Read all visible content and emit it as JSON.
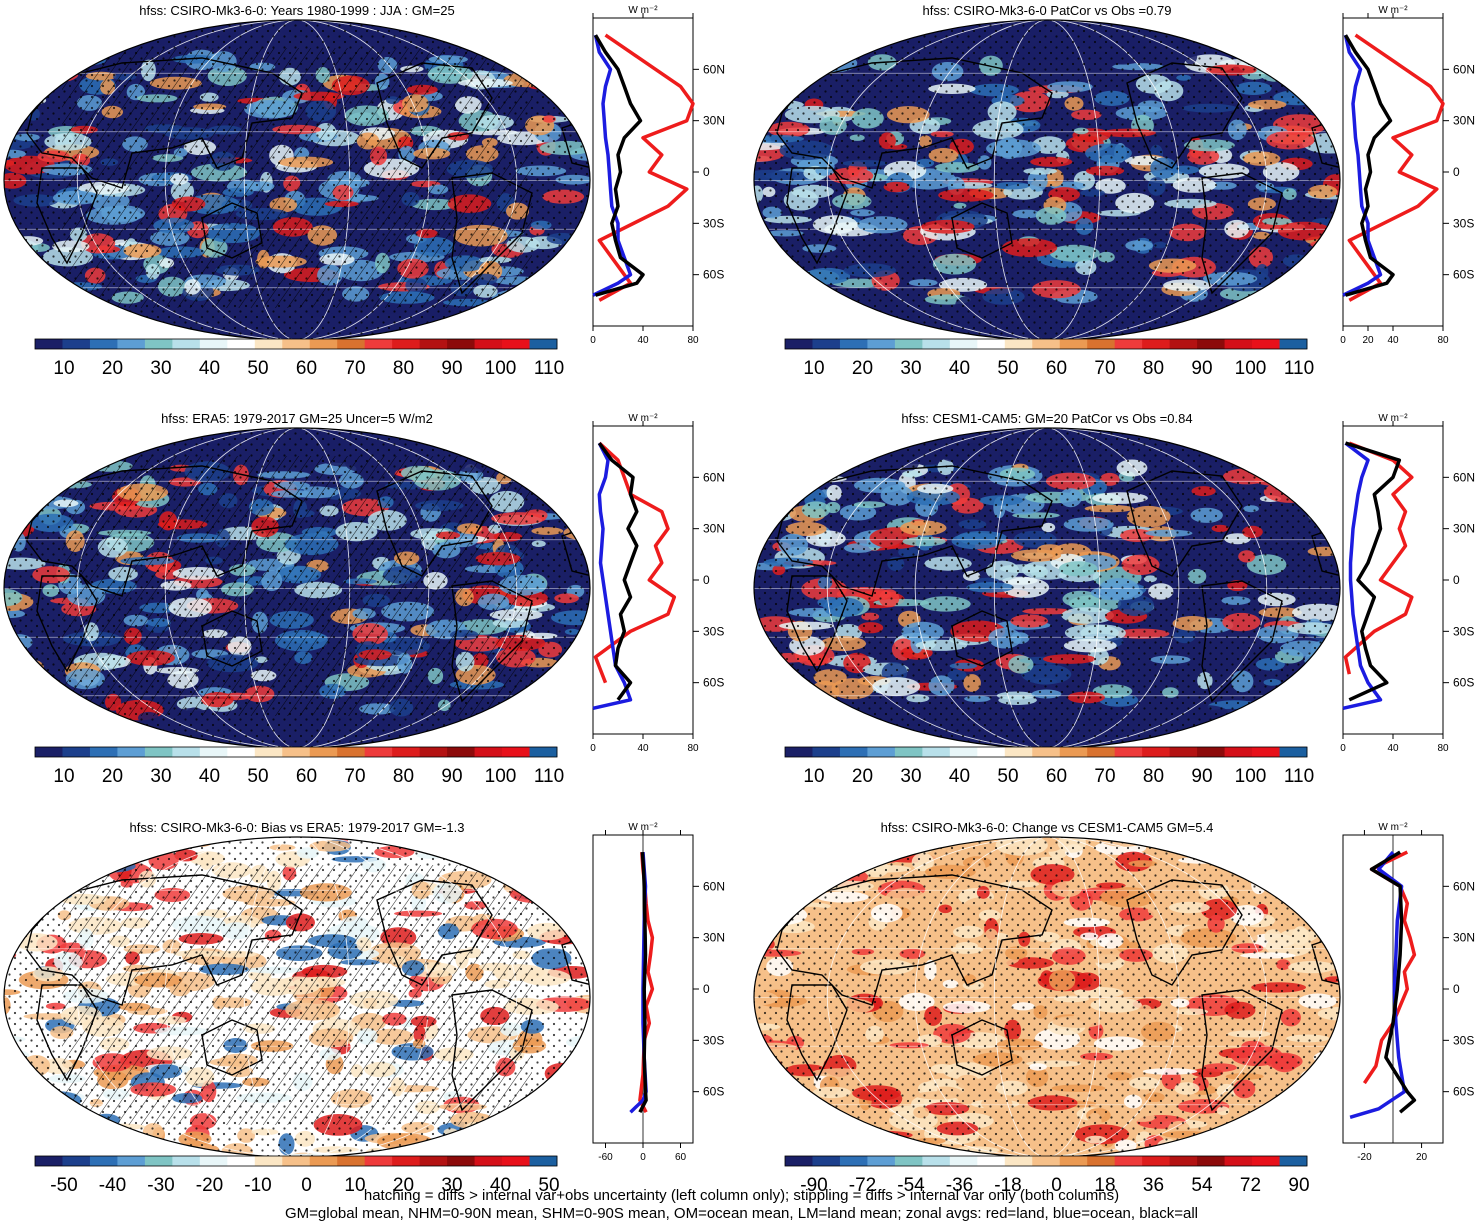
{
  "panels": [
    {
      "title": "hfss: CSIRO-Mk3-6-0: Years 1980-1999 : JJA : GM=25",
      "kind": "mean",
      "stipple": true,
      "hatch": true,
      "colorbar": {
        "ticks": [
          "10",
          "20",
          "30",
          "40",
          "50",
          "60",
          "70",
          "80",
          "90",
          "100",
          "110"
        ]
      },
      "profile": {
        "unit": "W m-2",
        "xticks": [
          "0",
          "40",
          "80"
        ],
        "xlim": [
          0,
          80
        ]
      }
    },
    {
      "title": "hfss: CSIRO-Mk3-6-0 PatCor vs Obs =0.79",
      "kind": "mean",
      "stipple": true,
      "hatch": false,
      "colorbar": {
        "ticks": [
          "10",
          "20",
          "30",
          "40",
          "50",
          "60",
          "70",
          "80",
          "90",
          "100",
          "110"
        ]
      },
      "profile": {
        "unit": "W m-2",
        "xticks": [
          "0",
          "20",
          "40",
          "80"
        ],
        "xlim": [
          0,
          80
        ]
      }
    },
    {
      "title": "hfss: ERA5: 1979-2017 GM=25 Uncer=5 W/m2",
      "kind": "mean",
      "stipple": true,
      "hatch": true,
      "colorbar": {
        "ticks": [
          "10",
          "20",
          "30",
          "40",
          "50",
          "60",
          "70",
          "80",
          "90",
          "100",
          "110"
        ]
      },
      "profile": {
        "unit": "W m-2",
        "xticks": [
          "0",
          "40",
          "80"
        ],
        "xlim": [
          0,
          80
        ]
      }
    },
    {
      "title": "hfss: CESM1-CAM5: GM=20 PatCor vs Obs =0.84",
      "kind": "mean",
      "stipple": true,
      "hatch": false,
      "colorbar": {
        "ticks": [
          "10",
          "20",
          "30",
          "40",
          "50",
          "60",
          "70",
          "80",
          "90",
          "100",
          "110"
        ]
      },
      "profile": {
        "unit": "W m-2",
        "xticks": [
          "0",
          "40",
          "80"
        ],
        "xlim": [
          0,
          80
        ]
      }
    },
    {
      "title": "hfss: CSIRO-Mk3-6-0: Bias vs ERA5: 1979-2017 GM=-1.3",
      "kind": "bias",
      "stipple": true,
      "hatch": true,
      "colorbar": {
        "ticks": [
          "-50",
          "-40",
          "-30",
          "-20",
          "-10",
          "0",
          "10",
          "20",
          "30",
          "40",
          "50"
        ]
      },
      "profile": {
        "unit": "W m-2",
        "xticks": [
          "-60",
          "0",
          "60"
        ],
        "xlim": [
          -80,
          80
        ]
      }
    },
    {
      "title": "hfss: CSIRO-Mk3-6-0: Change vs CESM1-CAM5 GM=5.4",
      "kind": "change",
      "stipple": true,
      "hatch": false,
      "colorbar": {
        "ticks": [
          "-90",
          "-72",
          "-54",
          "-36",
          "-18",
          "0",
          "18",
          "36",
          "54",
          "72",
          "90"
        ]
      },
      "profile": {
        "unit": "W m-2",
        "xticks": [
          "-20",
          "20"
        ],
        "xlim": [
          -35,
          35
        ]
      }
    }
  ],
  "lat_ticks": [
    "60N",
    "30N",
    "0",
    "30S",
    "60S"
  ],
  "palette": [
    "#1a1f66",
    "#1c3f8c",
    "#2d6fb5",
    "#5d9ed4",
    "#7fc4c4",
    "#b8e0ea",
    "#e8f6f8",
    "#ffffff",
    "#fbe6c4",
    "#f6c089",
    "#eb9a53",
    "#d9722f",
    "#ee3b3b",
    "#dd1c1c",
    "#b31212",
    "#8c0a0a",
    "#d40f18",
    "#e8101a",
    "#1b5fa0"
  ],
  "footer": {
    "line1": "hatching = diffs > internal var+obs uncertainty (left column only); stippling = diffs > internal var only (both columns)",
    "line2": "GM=global mean, NHM=0-90N mean, SHM=0-90S mean, OM=ocean mean, LM=land mean; zonal avgs: red=land, blue=ocean, black=all"
  },
  "chart_data": [
    {
      "type": "line",
      "title": "hfss: CSIRO-Mk3-6-0: Years 1980-1999 : JJA : GM=25",
      "xlabel": "W m-2",
      "xlim": [
        0,
        80
      ],
      "ylabel": "",
      "ylim": [
        -90,
        90
      ],
      "series": [
        {
          "name": "land",
          "color": "#ee1c1c",
          "y": [
            -75,
            -65,
            -40,
            -20,
            -10,
            0,
            10,
            20,
            30,
            40,
            50,
            60,
            70,
            80
          ],
          "values": [
            5,
            30,
            5,
            60,
            75,
            45,
            55,
            40,
            75,
            80,
            70,
            50,
            30,
            10
          ]
        },
        {
          "name": "ocean",
          "color": "#1c1ce0",
          "y": [
            -72,
            -65,
            -60,
            -50,
            -40,
            -30,
            -20,
            -10,
            0,
            10,
            20,
            30,
            40,
            50,
            60,
            70,
            80
          ],
          "values": [
            0,
            20,
            30,
            25,
            20,
            20,
            15,
            14,
            13,
            12,
            10,
            9,
            8,
            10,
            14,
            5,
            2
          ]
        },
        {
          "name": "all",
          "color": "#000000",
          "y": [
            -72,
            -65,
            -60,
            -50,
            -40,
            -30,
            -20,
            -10,
            0,
            10,
            20,
            30,
            40,
            50,
            60,
            70,
            80
          ],
          "values": [
            2,
            35,
            40,
            22,
            18,
            15,
            20,
            18,
            22,
            20,
            25,
            38,
            30,
            25,
            20,
            10,
            2
          ]
        }
      ]
    },
    {
      "type": "line",
      "title": "hfss: CSIRO-Mk3-6-0 PatCor vs Obs =0.79",
      "xlabel": "W m-2",
      "xlim": [
        0,
        80
      ],
      "ylabel": "",
      "ylim": [
        -90,
        90
      ],
      "series": [
        {
          "name": "land",
          "color": "#ee1c1c",
          "y": [
            -75,
            -65,
            -40,
            -20,
            -10,
            0,
            10,
            20,
            30,
            40,
            50,
            60,
            70,
            80
          ],
          "values": [
            5,
            30,
            5,
            60,
            75,
            45,
            55,
            40,
            75,
            80,
            70,
            50,
            30,
            10
          ]
        },
        {
          "name": "ocean",
          "color": "#1c1ce0",
          "y": [
            -72,
            -65,
            -60,
            -50,
            -40,
            -30,
            -20,
            -10,
            0,
            10,
            20,
            30,
            40,
            50,
            60,
            70,
            80
          ],
          "values": [
            0,
            20,
            30,
            25,
            20,
            20,
            15,
            14,
            13,
            12,
            10,
            9,
            8,
            10,
            14,
            5,
            2
          ]
        },
        {
          "name": "all",
          "color": "#000000",
          "y": [
            -72,
            -65,
            -60,
            -50,
            -40,
            -30,
            -20,
            -10,
            0,
            10,
            20,
            30,
            40,
            50,
            60,
            70,
            80
          ],
          "values": [
            2,
            35,
            40,
            22,
            18,
            15,
            20,
            18,
            22,
            20,
            25,
            38,
            30,
            25,
            20,
            10,
            2
          ]
        }
      ]
    },
    {
      "type": "line",
      "title": "hfss: ERA5: 1979-2017 GM=25 Uncer=5 W/m2",
      "xlabel": "W m-2",
      "xlim": [
        0,
        80
      ],
      "ylabel": "",
      "ylim": [
        -90,
        90
      ],
      "series": [
        {
          "name": "land",
          "color": "#ee1c1c",
          "y": [
            -60,
            -45,
            -30,
            -20,
            -10,
            0,
            10,
            20,
            30,
            40,
            50,
            60,
            70,
            80
          ],
          "values": [
            10,
            2,
            30,
            60,
            65,
            45,
            55,
            50,
            60,
            55,
            30,
            25,
            20,
            5
          ]
        },
        {
          "name": "ocean",
          "color": "#1c1ce0",
          "y": [
            -75,
            -70,
            -60,
            -50,
            -40,
            -30,
            -20,
            -10,
            0,
            10,
            20,
            30,
            40,
            50,
            60,
            70,
            80
          ],
          "values": [
            0,
            30,
            25,
            18,
            16,
            14,
            12,
            10,
            8,
            6,
            7,
            8,
            6,
            5,
            10,
            12,
            5
          ]
        },
        {
          "name": "all",
          "color": "#000000",
          "y": [
            -70,
            -60,
            -50,
            -40,
            -30,
            -20,
            -10,
            0,
            10,
            20,
            30,
            40,
            50,
            60,
            70,
            80
          ],
          "values": [
            20,
            30,
            18,
            20,
            25,
            22,
            30,
            25,
            30,
            35,
            28,
            35,
            30,
            32,
            15,
            5
          ]
        }
      ]
    },
    {
      "type": "line",
      "title": "hfss: CESM1-CAM5: GM=20 PatCor vs Obs =0.84",
      "xlabel": "W m-2",
      "xlim": [
        0,
        80
      ],
      "ylabel": "",
      "ylim": [
        -90,
        90
      ],
      "series": [
        {
          "name": "land",
          "color": "#ee1c1c",
          "y": [
            -55,
            -45,
            -30,
            -20,
            -10,
            0,
            10,
            20,
            30,
            40,
            50,
            60,
            70,
            80
          ],
          "values": [
            5,
            2,
            25,
            50,
            55,
            30,
            40,
            50,
            45,
            50,
            40,
            55,
            40,
            5
          ]
        },
        {
          "name": "ocean",
          "color": "#1c1ce0",
          "y": [
            -75,
            -70,
            -60,
            -50,
            -40,
            -30,
            -20,
            -10,
            0,
            10,
            20,
            30,
            40,
            50,
            60,
            70,
            80
          ],
          "values": [
            0,
            30,
            20,
            14,
            12,
            10,
            8,
            7,
            6,
            6,
            7,
            8,
            10,
            12,
            15,
            20,
            2
          ]
        },
        {
          "name": "all",
          "color": "#000000",
          "y": [
            -70,
            -60,
            -50,
            -40,
            -30,
            -20,
            -10,
            0,
            10,
            20,
            30,
            40,
            50,
            60,
            70,
            80
          ],
          "values": [
            5,
            35,
            22,
            18,
            15,
            20,
            25,
            12,
            20,
            25,
            30,
            28,
            25,
            40,
            45,
            2
          ]
        }
      ]
    },
    {
      "type": "line",
      "title": "hfss: CSIRO-Mk3-6-0: Bias vs ERA5: 1979-2017 GM=-1.3",
      "xlabel": "W m-2",
      "xlim": [
        -80,
        80
      ],
      "ylabel": "",
      "ylim": [
        -90,
        90
      ],
      "series": [
        {
          "name": "land",
          "color": "#ee1c1c",
          "y": [
            -72,
            -65,
            -50,
            -30,
            -20,
            -10,
            0,
            10,
            20,
            30,
            40,
            50,
            60,
            70,
            80
          ],
          "values": [
            5,
            -5,
            0,
            2,
            10,
            5,
            15,
            8,
            12,
            15,
            8,
            5,
            3,
            0,
            -2
          ]
        },
        {
          "name": "ocean",
          "color": "#1c1ce0",
          "y": [
            -72,
            -65,
            -60,
            -40,
            -20,
            0,
            20,
            40,
            60,
            70,
            80
          ],
          "values": [
            -20,
            0,
            5,
            2,
            0,
            0,
            1,
            2,
            4,
            2,
            0
          ]
        },
        {
          "name": "all",
          "color": "#000000",
          "y": [
            -72,
            -65,
            -60,
            -40,
            -20,
            0,
            20,
            40,
            60,
            70,
            80
          ],
          "values": [
            -5,
            5,
            4,
            2,
            3,
            2,
            4,
            3,
            2,
            1,
            -1
          ]
        }
      ]
    },
    {
      "type": "line",
      "title": "hfss: CSIRO-Mk3-6-0: Change vs CESM1-CAM5 GM=5.4",
      "xlabel": "W m-2",
      "xlim": [
        -35,
        35
      ],
      "ylabel": "",
      "ylim": [
        -90,
        90
      ],
      "series": [
        {
          "name": "land",
          "color": "#ee1c1c",
          "y": [
            -55,
            -45,
            -30,
            -20,
            -10,
            0,
            10,
            20,
            30,
            40,
            50,
            60,
            70,
            80
          ],
          "values": [
            -20,
            -12,
            -8,
            0,
            5,
            10,
            8,
            15,
            12,
            8,
            10,
            5,
            -15,
            10
          ]
        },
        {
          "name": "ocean",
          "color": "#1c1ce0",
          "y": [
            -75,
            -70,
            -60,
            -40,
            -20,
            0,
            20,
            40,
            60,
            70,
            80
          ],
          "values": [
            -30,
            -10,
            8,
            4,
            2,
            1,
            2,
            3,
            6,
            -10,
            0
          ]
        },
        {
          "name": "all",
          "color": "#000000",
          "y": [
            -72,
            -65,
            -60,
            -40,
            -20,
            0,
            20,
            40,
            60,
            70,
            80
          ],
          "values": [
            5,
            15,
            10,
            -5,
            0,
            3,
            5,
            6,
            5,
            -15,
            5
          ]
        }
      ]
    }
  ]
}
